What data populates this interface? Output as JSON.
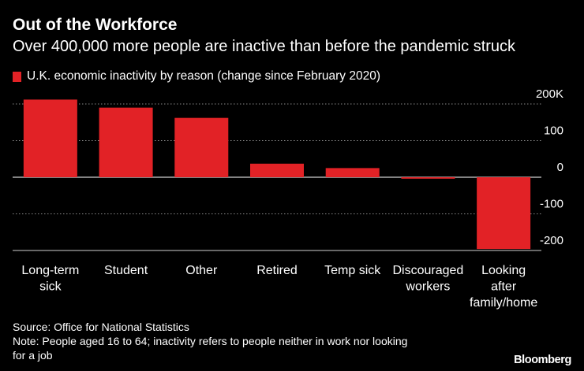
{
  "header": {
    "title": "Out of the Workforce",
    "subtitle": "Over 400,000 more people are inactive than before the pandemic struck"
  },
  "colors": {
    "bar": "#e22226",
    "background": "#000000",
    "text": "#ffffff",
    "grid": "#8a8a8a"
  },
  "chart_data": {
    "type": "bar",
    "legend": "U.K. economic inactivity by reason (change since February 2020)",
    "categories": [
      [
        "Long-term",
        "sick"
      ],
      [
        "Student"
      ],
      [
        "Other"
      ],
      [
        "Retired"
      ],
      [
        "Temp sick"
      ],
      [
        "Discouraged",
        "workers"
      ],
      [
        "Looking",
        "after",
        "family/home"
      ]
    ],
    "values": [
      212,
      190,
      162,
      37,
      25,
      -4,
      -196
    ],
    "ylim": [
      -200,
      200
    ],
    "y_ticks": [
      200,
      100,
      0,
      -100,
      -200
    ],
    "y_tick_labels": [
      "200K",
      "100",
      "0",
      "-100",
      "-200"
    ],
    "ylabel": "",
    "xlabel": "",
    "grid": true
  },
  "footer": {
    "source": "Source: Office for National Statistics",
    "note_line1": "Note: People aged 16 to 64; inactivity refers to people neither in work nor looking",
    "note_line2": "for a job",
    "brand": "Bloomberg"
  }
}
